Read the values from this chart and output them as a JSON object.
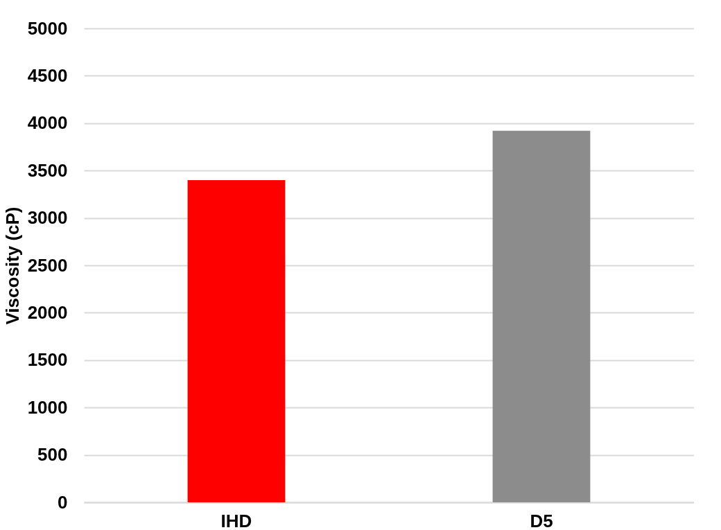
{
  "chart_data": {
    "type": "bar",
    "ylabel": "Viscosity (cP)",
    "categories": [
      "IHD",
      "D5"
    ],
    "values": [
      3400,
      3920
    ],
    "colors": [
      "#ff0000",
      "#8c8c8c"
    ],
    "ylim": [
      0,
      5000
    ],
    "yticks": [
      0,
      500,
      1000,
      1500,
      2000,
      2500,
      3000,
      3500,
      4000,
      4500,
      5000
    ],
    "grid": "y"
  }
}
